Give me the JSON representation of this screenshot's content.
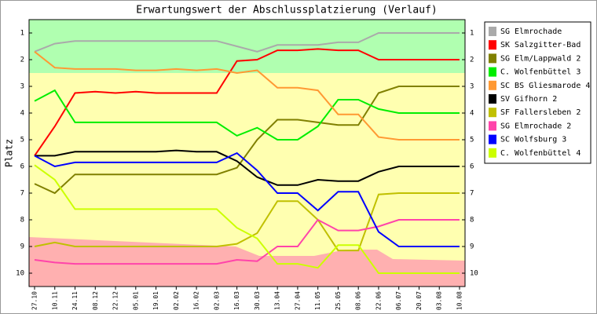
{
  "chart_data": {
    "type": "line",
    "title": "Erwartungswert der Abschlussplatzierung (Verlauf)",
    "y_label": "Platz",
    "categories": [
      "27.10",
      "10.11",
      "24.11",
      "08.12",
      "22.12",
      "05.01",
      "19.01",
      "02.02",
      "16.02",
      "02.03",
      "16.03",
      "30.03",
      "13.04",
      "27.04",
      "11.05",
      "25.05",
      "08.06",
      "22.06",
      "06.07",
      "20.07",
      "03.08",
      "10.08"
    ],
    "ylim": [
      0.5,
      10.5
    ],
    "yticks": [
      1,
      2,
      3,
      4,
      5,
      6,
      7,
      8,
      9,
      10
    ],
    "y_inverted": true,
    "series": [
      {
        "name": "SG Elmrochade",
        "color": "#aaaaaa",
        "values": [
          1.7,
          1.4,
          1.3,
          1.3,
          1.3,
          1.3,
          1.3,
          1.3,
          1.3,
          1.3,
          1.5,
          1.7,
          1.45,
          1.45,
          1.45,
          1.35,
          1.35,
          1.0,
          1.0,
          1.0,
          1.0,
          1.0
        ]
      },
      {
        "name": "SK Salzgitter-Bad",
        "color": "#ff0000",
        "values": [
          5.6,
          4.5,
          3.25,
          3.2,
          3.25,
          3.2,
          3.25,
          3.25,
          3.25,
          3.25,
          2.05,
          2.0,
          1.65,
          1.65,
          1.6,
          1.65,
          1.65,
          2.0,
          2.0,
          2.0,
          2.0,
          2.0
        ]
      },
      {
        "name": "SG Elm/Lappwald 2",
        "color": "#808000",
        "values": [
          6.65,
          7.0,
          6.3,
          6.3,
          6.3,
          6.3,
          6.3,
          6.3,
          6.3,
          6.3,
          6.05,
          5.0,
          4.25,
          4.25,
          4.35,
          4.45,
          4.45,
          3.25,
          3.0,
          3.0,
          3.0,
          3.0
        ]
      },
      {
        "name": "C. Wolfenbüttel 3",
        "color": "#00ee00",
        "values": [
          3.55,
          3.15,
          4.35,
          4.35,
          4.35,
          4.35,
          4.35,
          4.35,
          4.35,
          4.35,
          4.85,
          4.55,
          5.0,
          5.0,
          4.5,
          3.5,
          3.5,
          3.85,
          4.0,
          4.0,
          4.0,
          4.0
        ]
      },
      {
        "name": "SC BS Gliesmarode 4",
        "color": "#ff9933",
        "values": [
          1.7,
          2.3,
          2.35,
          2.35,
          2.35,
          2.4,
          2.4,
          2.35,
          2.4,
          2.35,
          2.5,
          2.4,
          3.05,
          3.05,
          3.15,
          4.05,
          4.05,
          4.9,
          5.0,
          5.0,
          5.0,
          5.0
        ]
      },
      {
        "name": "SV Gifhorn 2",
        "color": "#000000",
        "values": [
          5.6,
          5.6,
          5.45,
          5.45,
          5.45,
          5.45,
          5.45,
          5.4,
          5.45,
          5.45,
          5.8,
          6.4,
          6.7,
          6.7,
          6.5,
          6.55,
          6.55,
          6.2,
          6.0,
          6.0,
          6.0,
          6.0
        ]
      },
      {
        "name": "SF Fallersleben 2",
        "color": "#c0c000",
        "values": [
          9.0,
          8.85,
          9.0,
          9.0,
          9.0,
          9.0,
          9.0,
          9.0,
          9.0,
          9.0,
          8.9,
          8.5,
          7.3,
          7.3,
          8.0,
          9.15,
          9.15,
          7.05,
          7.0,
          7.0,
          7.0,
          7.0
        ]
      },
      {
        "name": "SG Elmrochade 2",
        "color": "#ff44aa",
        "values": [
          9.5,
          9.6,
          9.65,
          9.65,
          9.65,
          9.65,
          9.65,
          9.65,
          9.65,
          9.65,
          9.5,
          9.55,
          9.0,
          9.0,
          8.0,
          8.4,
          8.4,
          8.25,
          8.0,
          8.0,
          8.0,
          8.0
        ]
      },
      {
        "name": "SC Wolfsburg 3",
        "color": "#0000ff",
        "values": [
          5.6,
          6.0,
          5.85,
          5.85,
          5.85,
          5.85,
          5.85,
          5.85,
          5.85,
          5.85,
          5.5,
          6.15,
          7.0,
          7.0,
          7.65,
          6.95,
          6.95,
          8.45,
          9.0,
          9.0,
          9.0,
          9.0
        ]
      },
      {
        "name": "C. Wolfenbüttel 4",
        "color": "#ccff00",
        "values": [
          5.95,
          6.5,
          7.6,
          7.6,
          7.6,
          7.6,
          7.6,
          7.6,
          7.6,
          7.6,
          8.3,
          8.7,
          9.65,
          9.65,
          9.8,
          8.95,
          8.95,
          10.0,
          10.0,
          10.0,
          10.0,
          10.0
        ]
      }
    ]
  }
}
